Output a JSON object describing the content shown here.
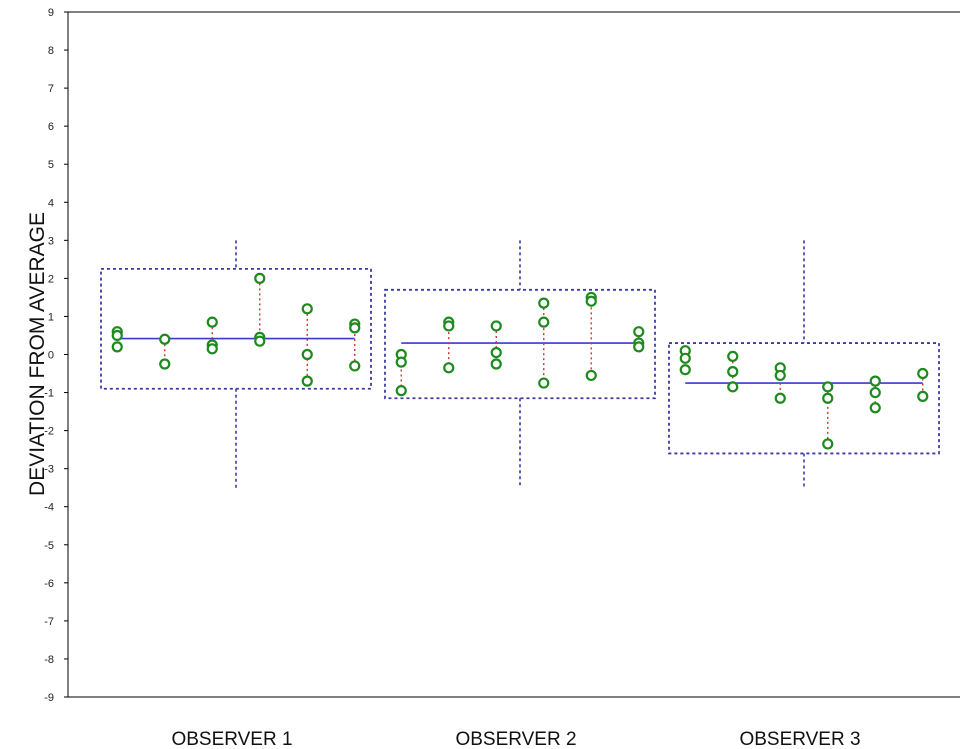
{
  "chart_data": {
    "type": "scatter",
    "title": "",
    "xlabel": "",
    "ylabel": "DEVIATION FROM AVERAGE",
    "ylim": [
      -9,
      9
    ],
    "yticks": [
      "9",
      "8",
      "7",
      "6",
      "5",
      "4",
      "3",
      "2",
      "1",
      "0",
      "-1",
      "-2",
      "-3",
      "-4",
      "-5",
      "-6",
      "-7",
      "-8",
      "-9"
    ],
    "grid": false,
    "categories": [
      "OBSERVER 1",
      "OBSERVER 2",
      "OBSERVER 3"
    ],
    "groups": [
      {
        "category": "OBSERVER 1",
        "mean": 0.42,
        "box": [
          -0.9,
          2.25
        ],
        "whisker": [
          -3.5,
          3.0
        ],
        "items": [
          {
            "values": [
              0.6,
              0.5,
              0.2
            ]
          },
          {
            "values": [
              0.4,
              -0.25
            ]
          },
          {
            "values": [
              0.85,
              0.25,
              0.15
            ]
          },
          {
            "values": [
              2.0,
              0.45,
              0.35
            ]
          },
          {
            "values": [
              1.2,
              0.0,
              -0.7
            ]
          },
          {
            "values": [
              0.8,
              0.7,
              -0.3
            ]
          }
        ]
      },
      {
        "category": "OBSERVER 2",
        "mean": 0.3,
        "box": [
          -1.15,
          1.7
        ],
        "whisker": [
          -3.5,
          3.0
        ],
        "items": [
          {
            "values": [
              0.0,
              -0.2,
              -0.95
            ]
          },
          {
            "values": [
              0.85,
              0.75,
              -0.35
            ]
          },
          {
            "values": [
              0.75,
              0.05,
              -0.25
            ]
          },
          {
            "values": [
              1.35,
              0.85,
              -0.75
            ]
          },
          {
            "values": [
              1.5,
              1.4,
              -0.55
            ]
          },
          {
            "values": [
              0.6,
              0.3,
              0.2
            ]
          }
        ]
      },
      {
        "category": "OBSERVER 3",
        "mean": -0.75,
        "box": [
          -2.6,
          0.3
        ],
        "whisker": [
          -3.5,
          3.0
        ],
        "items": [
          {
            "values": [
              0.1,
              -0.1,
              -0.4
            ]
          },
          {
            "values": [
              -0.05,
              -0.45,
              -0.85
            ]
          },
          {
            "values": [
              -0.35,
              -0.55,
              -1.15
            ]
          },
          {
            "values": [
              -0.85,
              -1.15,
              -2.35
            ]
          },
          {
            "values": [
              -0.7,
              -1.0,
              -1.4
            ]
          },
          {
            "values": [
              -0.5,
              -1.1
            ]
          }
        ]
      }
    ],
    "colors": {
      "box": "#3a3aa6",
      "mean_line": "#3a3acc",
      "connector": "#cc3333",
      "point": "#1e8a1e",
      "axis": "#000000"
    }
  }
}
